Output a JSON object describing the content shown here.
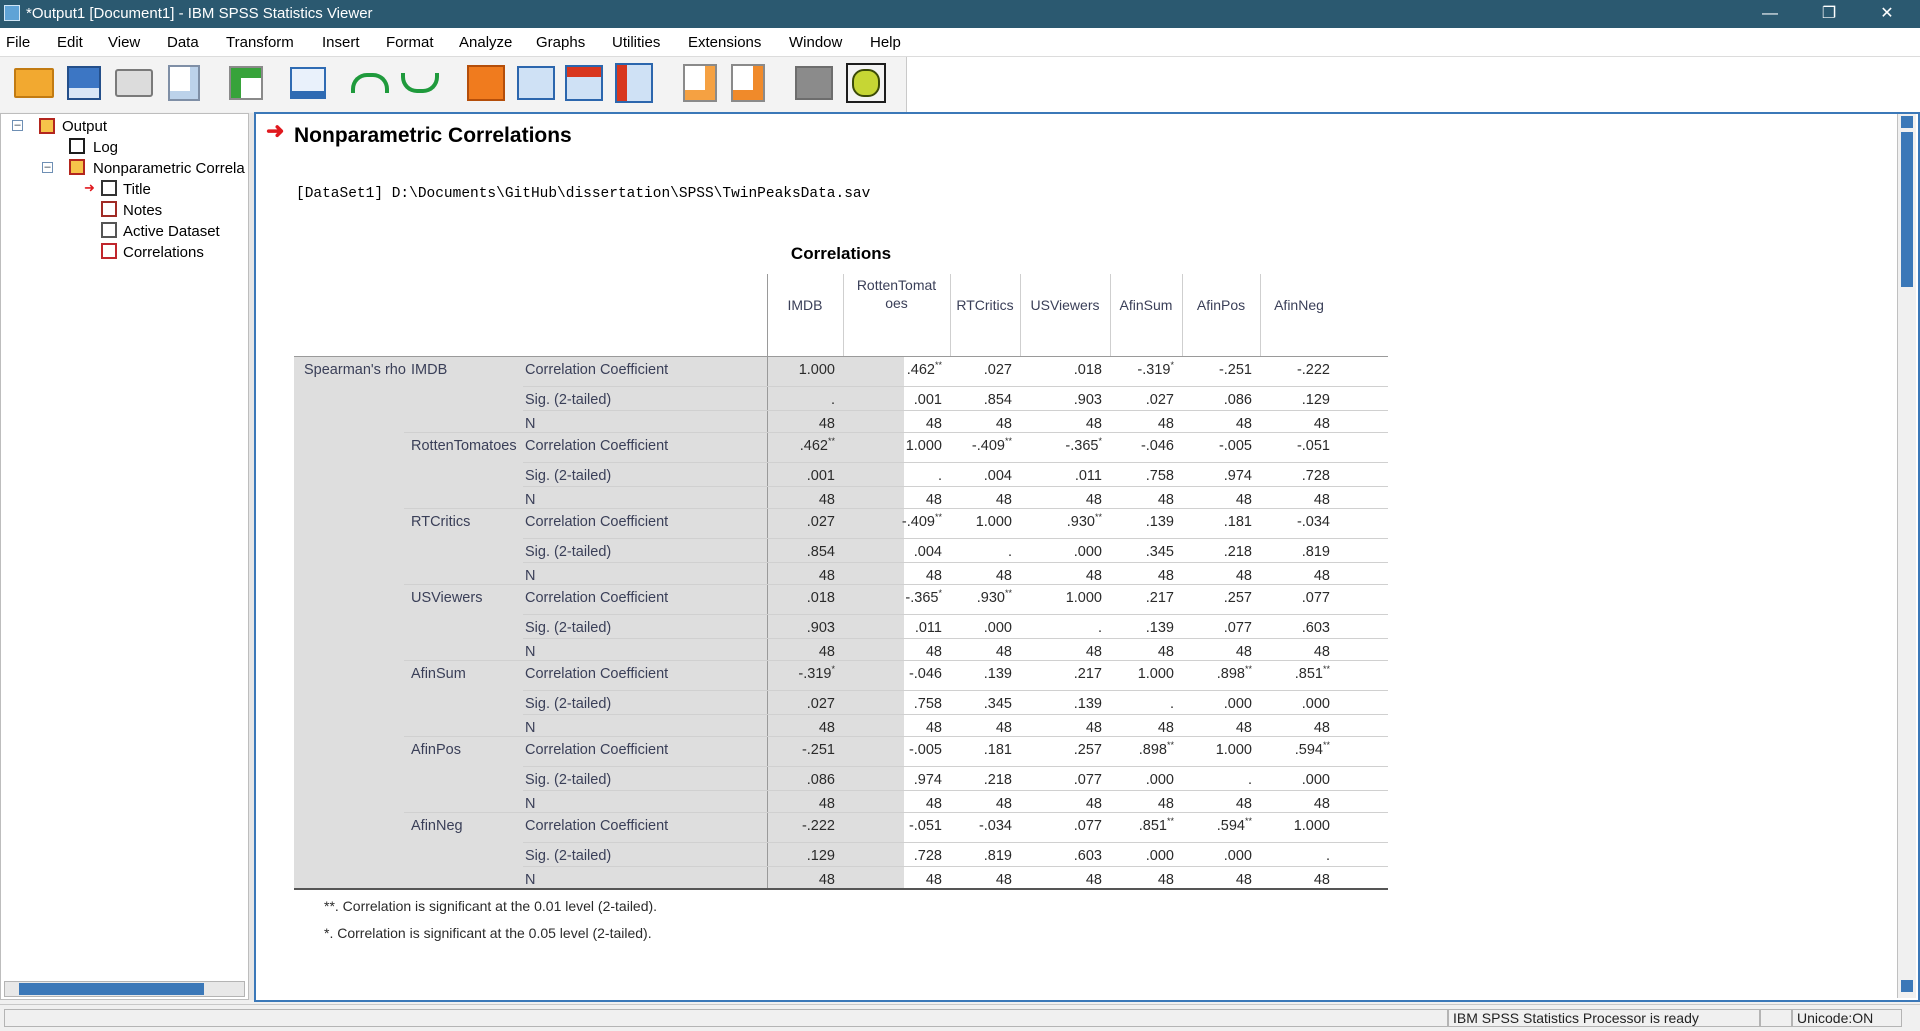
{
  "window": {
    "title": "*Output1 [Document1] - IBM SPSS Statistics Viewer"
  },
  "menu": [
    "File",
    "Edit",
    "View",
    "Data",
    "Transform",
    "Insert",
    "Format",
    "Analyze",
    "Graphs",
    "Utilities",
    "Extensions",
    "Window",
    "Help"
  ],
  "toolbar": [
    "open-icon",
    "save-icon",
    "print-icon",
    "print-preview-icon",
    "export-icon",
    "recall-dialog-icon",
    "undo-icon",
    "redo-icon",
    "goto-case-icon",
    "goto-variable-icon",
    "insert-case-icon",
    "variables-icon",
    "edit-icon",
    "run-icon",
    "stop-icon",
    "designate-window-icon"
  ],
  "outline": {
    "root": "Output",
    "log": "Log",
    "proc": "Nonparametric Correla",
    "items": [
      "Title",
      "Notes",
      "Active Dataset",
      "Correlations"
    ]
  },
  "doc": {
    "heading": "Nonparametric Correlations",
    "dataset": "[DataSet1] D:\\Documents\\GitHub\\dissertation\\SPSS\\TwinPeaksData.sav",
    "table_title": "Correlations",
    "method": "Spearman's rho",
    "columns": [
      "IMDB",
      "RottenTomat oes",
      "RTCritics",
      "USViewers",
      "AfinSum",
      "AfinPos",
      "AfinNeg"
    ],
    "stat_labels": [
      "Correlation Coefficient",
      "Sig. (2-tailed)",
      "N"
    ],
    "rows": [
      {
        "name": "IMDB",
        "cc": [
          "1.000",
          ".462",
          ".027",
          ".018",
          "-.319",
          "-.251",
          "-.222"
        ],
        "cc_sup": [
          "",
          "**",
          "",
          "",
          "*",
          "",
          ""
        ],
        "sig": [
          ".",
          ".001",
          ".854",
          ".903",
          ".027",
          ".086",
          ".129"
        ],
        "n": [
          "48",
          "48",
          "48",
          "48",
          "48",
          "48",
          "48"
        ]
      },
      {
        "name": "RottenTomatoes",
        "cc": [
          ".462",
          "1.000",
          "-.409",
          "-.365",
          "-.046",
          "-.005",
          "-.051"
        ],
        "cc_sup": [
          "**",
          "",
          "**",
          "*",
          "",
          "",
          ""
        ],
        "sig": [
          ".001",
          ".",
          ".004",
          ".011",
          ".758",
          ".974",
          ".728"
        ],
        "n": [
          "48",
          "48",
          "48",
          "48",
          "48",
          "48",
          "48"
        ]
      },
      {
        "name": "RTCritics",
        "cc": [
          ".027",
          "-.409",
          "1.000",
          ".930",
          ".139",
          ".181",
          "-.034"
        ],
        "cc_sup": [
          "",
          "**",
          "",
          "**",
          "",
          "",
          ""
        ],
        "sig": [
          ".854",
          ".004",
          ".",
          ".000",
          ".345",
          ".218",
          ".819"
        ],
        "n": [
          "48",
          "48",
          "48",
          "48",
          "48",
          "48",
          "48"
        ]
      },
      {
        "name": "USViewers",
        "cc": [
          ".018",
          "-.365",
          ".930",
          "1.000",
          ".217",
          ".257",
          ".077"
        ],
        "cc_sup": [
          "",
          "*",
          "**",
          "",
          "",
          "",
          ""
        ],
        "sig": [
          ".903",
          ".011",
          ".000",
          ".",
          ".139",
          ".077",
          ".603"
        ],
        "n": [
          "48",
          "48",
          "48",
          "48",
          "48",
          "48",
          "48"
        ]
      },
      {
        "name": "AfinSum",
        "cc": [
          "-.319",
          "-.046",
          ".139",
          ".217",
          "1.000",
          ".898",
          ".851"
        ],
        "cc_sup": [
          "*",
          "",
          "",
          "",
          "",
          "**",
          "**"
        ],
        "sig": [
          ".027",
          ".758",
          ".345",
          ".139",
          ".",
          ".000",
          ".000"
        ],
        "n": [
          "48",
          "48",
          "48",
          "48",
          "48",
          "48",
          "48"
        ]
      },
      {
        "name": "AfinPos",
        "cc": [
          "-.251",
          "-.005",
          ".181",
          ".257",
          ".898",
          "1.000",
          ".594"
        ],
        "cc_sup": [
          "",
          "",
          "",
          "",
          "**",
          "",
          "**"
        ],
        "sig": [
          ".086",
          ".974",
          ".218",
          ".077",
          ".000",
          ".",
          ".000"
        ],
        "n": [
          "48",
          "48",
          "48",
          "48",
          "48",
          "48",
          "48"
        ]
      },
      {
        "name": "AfinNeg",
        "cc": [
          "-.222",
          "-.051",
          "-.034",
          ".077",
          ".851",
          ".594",
          "1.000"
        ],
        "cc_sup": [
          "",
          "",
          "",
          "",
          "**",
          "**",
          ""
        ],
        "sig": [
          ".129",
          ".728",
          ".819",
          ".603",
          ".000",
          ".000",
          "."
        ],
        "n": [
          "48",
          "48",
          "48",
          "48",
          "48",
          "48",
          "48"
        ]
      }
    ],
    "footnotes": [
      "**. Correlation is significant at the 0.01 level (2-tailed).",
      "*. Correlation is significant at the 0.05 level (2-tailed)."
    ]
  },
  "status": {
    "processor": "IBM SPSS Statistics Processor is ready",
    "unicode": "Unicode:ON"
  }
}
